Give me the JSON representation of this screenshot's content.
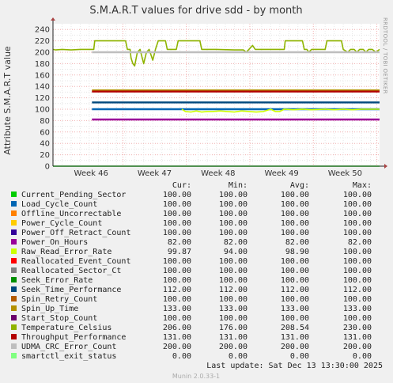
{
  "chart_data": {
    "type": "line",
    "title": "S.M.A.R.T values for drive sdd - by month",
    "ylabel": "Attribute S.M.A.R.T value",
    "xlabel": "",
    "ylim": [
      0,
      250
    ],
    "yticks": [
      0,
      20,
      40,
      60,
      80,
      100,
      120,
      140,
      160,
      180,
      200,
      220,
      240
    ],
    "xticks": [
      "Week 46",
      "Week 47",
      "Week 48",
      "Week 49",
      "Week 50"
    ],
    "grid": true,
    "side_label": "RRDTOOL / TOBI OETIKER",
    "columns": [
      "Cur:",
      "Min:",
      "Avg:",
      "Max:"
    ],
    "series": [
      {
        "name": "Current_Pending_Sector",
        "color": "#00cc00",
        "cur": "100.00",
        "min": "100.00",
        "avg": "100.00",
        "max": "100.00",
        "level": 100,
        "draw": false
      },
      {
        "name": "Load_Cycle_Count",
        "color": "#0066b3",
        "cur": "100.00",
        "min": "100.00",
        "avg": "100.00",
        "max": "100.00",
        "level": 100,
        "draw": true
      },
      {
        "name": "Offline_Uncorrectable",
        "color": "#ff8000",
        "cur": "100.00",
        "min": "100.00",
        "avg": "100.00",
        "max": "100.00",
        "level": 100,
        "draw": false
      },
      {
        "name": "Power_Cycle_Count",
        "color": "#ffcc00",
        "cur": "100.00",
        "min": "100.00",
        "avg": "100.00",
        "max": "100.00",
        "level": 100,
        "draw": false
      },
      {
        "name": "Power_Off_Retract_Count",
        "color": "#330099",
        "cur": "100.00",
        "min": "100.00",
        "avg": "100.00",
        "max": "100.00",
        "level": 100,
        "draw": false
      },
      {
        "name": "Power_On_Hours",
        "color": "#990099",
        "cur": "82.00",
        "min": "82.00",
        "avg": "82.00",
        "max": "82.00",
        "level": 82,
        "draw": true
      },
      {
        "name": "Raw_Read_Error_Rate",
        "color": "#ccff00",
        "cur": "99.87",
        "min": "94.00",
        "avg": "98.90",
        "max": "100.00",
        "level": 99,
        "draw": true
      },
      {
        "name": "Reallocated_Event_Count",
        "color": "#ff0000",
        "cur": "100.00",
        "min": "100.00",
        "avg": "100.00",
        "max": "100.00",
        "level": 100,
        "draw": false
      },
      {
        "name": "Reallocated_Sector_Ct",
        "color": "#808080",
        "cur": "100.00",
        "min": "100.00",
        "avg": "100.00",
        "max": "100.00",
        "level": 100,
        "draw": false
      },
      {
        "name": "Seek_Error_Rate",
        "color": "#008f00",
        "cur": "100.00",
        "min": "100.00",
        "avg": "100.00",
        "max": "100.00",
        "level": 100,
        "draw": false
      },
      {
        "name": "Seek_Time_Performance",
        "color": "#00487d",
        "cur": "112.00",
        "min": "112.00",
        "avg": "112.00",
        "max": "112.00",
        "level": 112,
        "draw": true
      },
      {
        "name": "Spin_Retry_Count",
        "color": "#b35a00",
        "cur": "100.00",
        "min": "100.00",
        "avg": "100.00",
        "max": "100.00",
        "level": 100,
        "draw": false
      },
      {
        "name": "Spin_Up_Time",
        "color": "#b38f00",
        "cur": "133.00",
        "min": "133.00",
        "avg": "133.00",
        "max": "133.00",
        "level": 133,
        "draw": true
      },
      {
        "name": "Start_Stop_Count",
        "color": "#6b006b",
        "cur": "100.00",
        "min": "100.00",
        "avg": "100.00",
        "max": "100.00",
        "level": 100,
        "draw": false
      },
      {
        "name": "Temperature_Celsius",
        "color": "#8fb300",
        "cur": "206.00",
        "min": "176.00",
        "avg": "208.54",
        "max": "230.00",
        "level": 206,
        "draw": true
      },
      {
        "name": "Throughput_Performance",
        "color": "#b30000",
        "cur": "131.00",
        "min": "131.00",
        "avg": "131.00",
        "max": "131.00",
        "level": 131,
        "draw": true
      },
      {
        "name": "UDMA_CRC_Error_Count",
        "color": "#bebebe",
        "cur": "200.00",
        "min": "200.00",
        "avg": "200.00",
        "max": "200.00",
        "level": 200,
        "draw": true
      },
      {
        "name": "smartctl_exit_status",
        "color": "#80ff80",
        "cur": "0.00",
        "min": "0.00",
        "avg": "0.00",
        "max": "0.00",
        "level": 0,
        "draw": true
      }
    ],
    "temperature_trace": [
      [
        0,
        205
      ],
      [
        0.3,
        204
      ],
      [
        1,
        205
      ],
      [
        2,
        204
      ],
      [
        3,
        205
      ],
      [
        4,
        205
      ],
      [
        4.5,
        205
      ],
      [
        4.6,
        220
      ],
      [
        8,
        220
      ],
      [
        8.2,
        205
      ],
      [
        8.5,
        205
      ],
      [
        8.6,
        190
      ],
      [
        8.8,
        180
      ],
      [
        9.0,
        176
      ],
      [
        9.3,
        200
      ],
      [
        9.6,
        205
      ],
      [
        10.0,
        180
      ],
      [
        10.3,
        200
      ],
      [
        10.6,
        205
      ],
      [
        11.0,
        186
      ],
      [
        11.3,
        205
      ],
      [
        11.6,
        220
      ],
      [
        12.4,
        220
      ],
      [
        12.6,
        205
      ],
      [
        13.6,
        205
      ],
      [
        13.8,
        220
      ],
      [
        16.2,
        220
      ],
      [
        16.4,
        205
      ],
      [
        18,
        205
      ],
      [
        20,
        204
      ],
      [
        21,
        204
      ],
      [
        21.3,
        200
      ],
      [
        21.6,
        205
      ],
      [
        22.0,
        212
      ],
      [
        22.3,
        205
      ],
      [
        24.5,
        205
      ],
      [
        25.5,
        205
      ],
      [
        25.6,
        220
      ],
      [
        27.5,
        220
      ],
      [
        27.7,
        205
      ],
      [
        28,
        205
      ],
      [
        28.2,
        200
      ],
      [
        28.5,
        205
      ],
      [
        30,
        205
      ],
      [
        30.2,
        220
      ],
      [
        31.8,
        220
      ],
      [
        32.0,
        205
      ],
      [
        32.5,
        200
      ],
      [
        32.8,
        205
      ],
      [
        33.2,
        205
      ],
      [
        33.5,
        200
      ],
      [
        33.8,
        205
      ],
      [
        34.2,
        205
      ],
      [
        34.5,
        200
      ],
      [
        34.8,
        205
      ],
      [
        35.2,
        205
      ],
      [
        35.6,
        200
      ],
      [
        36,
        205
      ]
    ],
    "raw_read_trace": [
      [
        14.2,
        100
      ],
      [
        14.6,
        96
      ],
      [
        15.2,
        95
      ],
      [
        15.8,
        97
      ],
      [
        16.4,
        95
      ],
      [
        17.0,
        96
      ],
      [
        17.6,
        96
      ],
      [
        18.4,
        97
      ],
      [
        19.2,
        96
      ],
      [
        20.0,
        95
      ],
      [
        20.8,
        97
      ],
      [
        21.6,
        96
      ],
      [
        22.4,
        95
      ],
      [
        23.2,
        96
      ],
      [
        24.0,
        100
      ],
      [
        24.5,
        96
      ],
      [
        25.0,
        96
      ],
      [
        25.5,
        100
      ],
      [
        26.5,
        99
      ],
      [
        27.5,
        100
      ],
      [
        28.5,
        99
      ],
      [
        30,
        100
      ],
      [
        31,
        99
      ],
      [
        32,
        100
      ],
      [
        33,
        99
      ],
      [
        34,
        100
      ],
      [
        35,
        100
      ],
      [
        36,
        100
      ]
    ]
  },
  "footer": {
    "last_update": "Last update:  Sat Dec 13 13:30:00 2025",
    "munin": "Munin 2.0.33-1"
  }
}
